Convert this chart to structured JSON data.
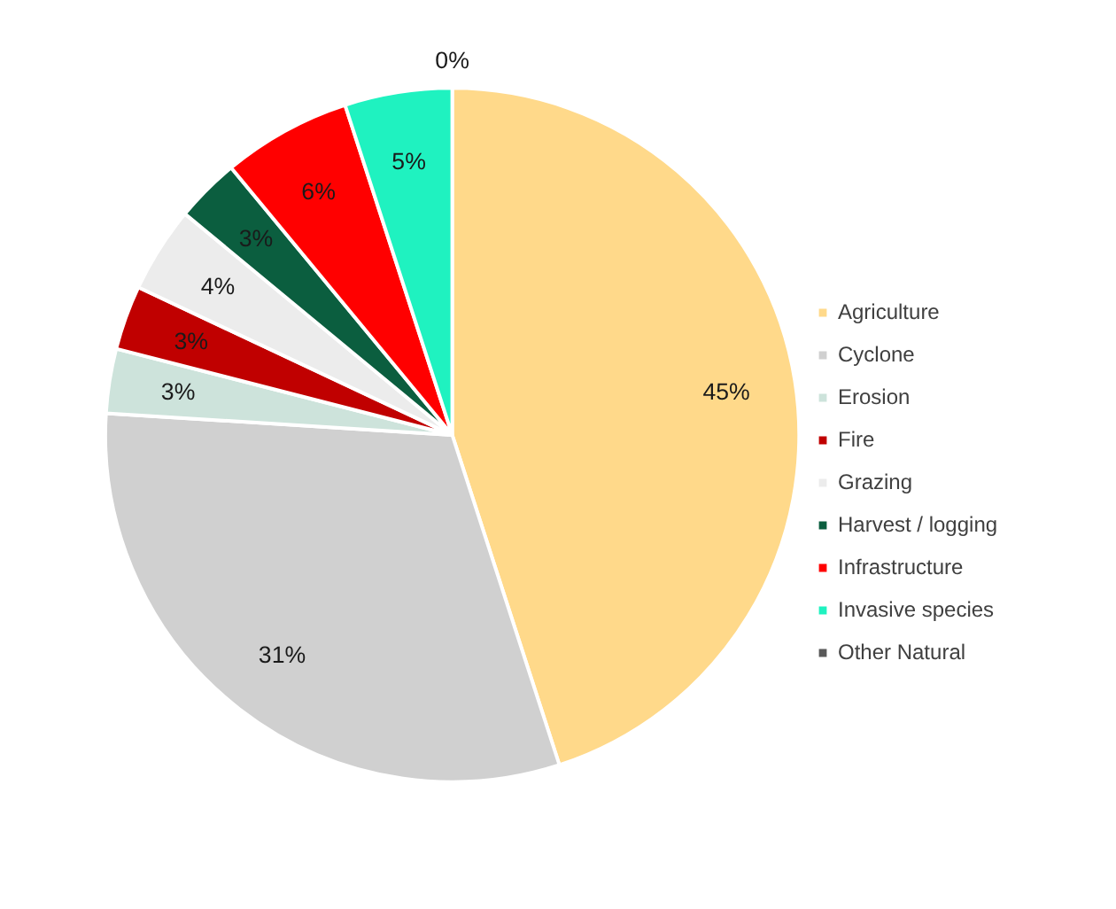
{
  "chart_data": {
    "type": "pie",
    "categories": [
      "Agriculture",
      "Cyclone",
      "Erosion",
      "Fire",
      "Grazing",
      "Harvest / logging",
      "Infrastructure",
      "Invasive species",
      "Other Natural"
    ],
    "values": [
      45,
      31,
      3,
      3,
      4,
      3,
      6,
      5,
      0
    ],
    "colors": [
      "#ffd98a",
      "#d0d0d0",
      "#cde3db",
      "#c00000",
      "#ececec",
      "#0b5e3f",
      "#ff0000",
      "#1ff2c0",
      "#595959"
    ],
    "value_labels": [
      "45%",
      "31%",
      "3%",
      "3%",
      "4%",
      "3%",
      "6%",
      "5%",
      "0%"
    ],
    "legend": "right"
  }
}
